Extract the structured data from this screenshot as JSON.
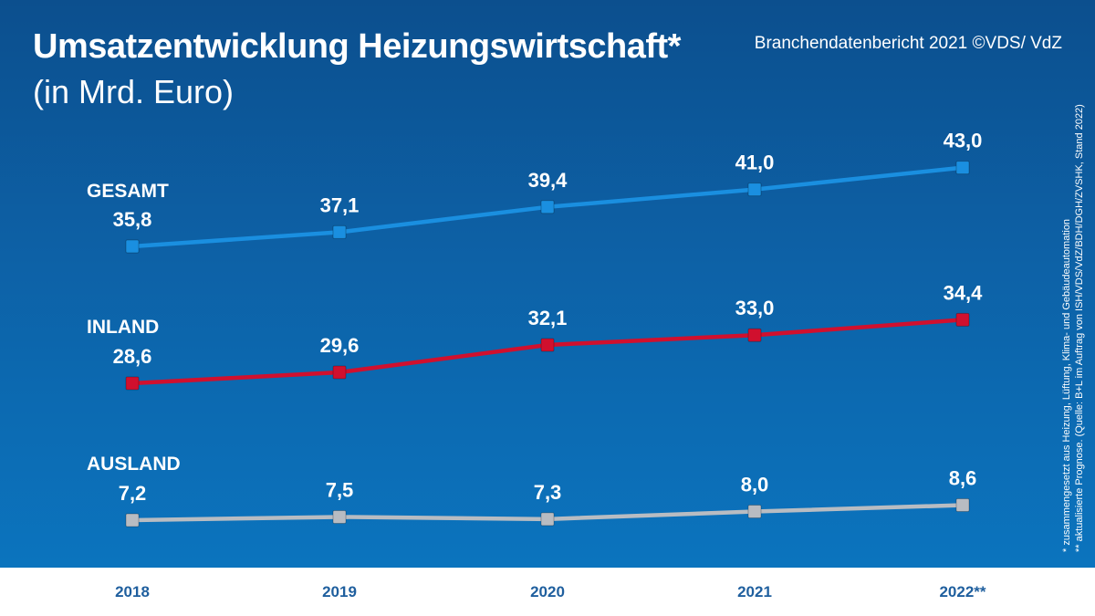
{
  "header": {
    "title": "Umsatzentwicklung Heizungswirtschaft*",
    "subtitle": "(in Mrd. Euro)",
    "source": "Branchendatenbericht 2021 ©VDS/ VdZ"
  },
  "footnotes": {
    "line1": "* zusammengesetzt aus Heizung, Lüftung, Klima- und Gebäudeautomation",
    "line2": "** aktualisierte Prognose. (Quelle: B+L im Auftrag von ISH/VDS/VdZ/BDH/DGH/ZVSHK, Stand 2022)"
  },
  "colors": {
    "background_top": "#0c4f8e",
    "background_bottom": "#0b74be",
    "gesamt": "#1a8fe0",
    "inland": "#d0102e",
    "ausland": "#b8bcc2",
    "axis_labels": "#1f5f9e"
  },
  "chart_data": {
    "type": "line",
    "title": "Umsatzentwicklung Heizungswirtschaft*",
    "subtitle": "(in Mrd. Euro)",
    "xlabel": "",
    "ylabel": "",
    "categories": [
      "2018",
      "2019",
      "2020",
      "2021",
      "2022**"
    ],
    "grid": false,
    "legend": "series labels placed at left of each line",
    "series": [
      {
        "name": "GESAMT",
        "color": "#1a8fe0",
        "values": [
          35.8,
          37.1,
          39.4,
          41.0,
          43.0
        ],
        "labels": [
          "35,8",
          "37,1",
          "39,4",
          "41,0",
          "43,0"
        ]
      },
      {
        "name": "INLAND",
        "color": "#d0102e",
        "values": [
          28.6,
          29.6,
          32.1,
          33.0,
          34.4
        ],
        "labels": [
          "28,6",
          "29,6",
          "32,1",
          "33,0",
          "34,4"
        ]
      },
      {
        "name": "AUSLAND",
        "color": "#b8bcc2",
        "values": [
          7.2,
          7.5,
          7.3,
          8.0,
          8.6
        ],
        "labels": [
          "7,2",
          "7,5",
          "7,3",
          "8,0",
          "8,6"
        ]
      }
    ]
  }
}
